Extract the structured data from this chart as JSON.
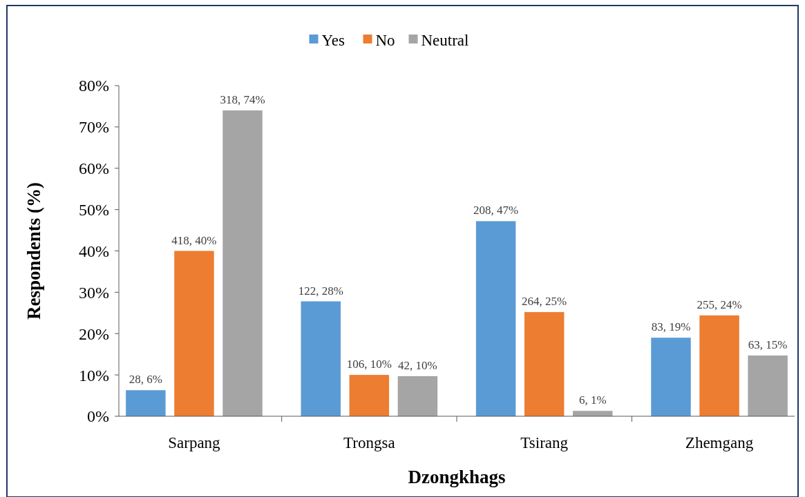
{
  "chart_data": {
    "type": "bar",
    "xlabel": "Dzongkhags",
    "ylabel": "Respondents (%)",
    "categories": [
      "Sarpang",
      "Trongsa",
      "Tsirang",
      "Zhemgang"
    ],
    "series": [
      {
        "name": "Yes",
        "color": "#5b9bd5",
        "values": [
          6.3,
          27.8,
          47.2,
          19
        ],
        "value_labels": [
          "28, 6%",
          "122, 28%",
          "208, 47%",
          "83, 19%"
        ]
      },
      {
        "name": "No",
        "color": "#ed7d31",
        "values": [
          40,
          10,
          25.2,
          24.4
        ],
        "value_labels": [
          "418, 40%",
          "106, 10%",
          "264, 25%",
          "255, 24%"
        ]
      },
      {
        "name": "Neutral",
        "color": "#a5a5a5",
        "values": [
          74,
          9.7,
          1.3,
          14.7
        ],
        "value_labels": [
          "318, 74%",
          "42, 10%",
          "6, 1%",
          "63, 15%"
        ]
      }
    ],
    "ylim": [
      0,
      80
    ],
    "yticks": [
      {
        "value": 0,
        "label": "0%"
      },
      {
        "value": 10,
        "label": "10%"
      },
      {
        "value": 20,
        "label": "20%"
      },
      {
        "value": 30,
        "label": "30%"
      },
      {
        "value": 40,
        "label": "40%"
      },
      {
        "value": 50,
        "label": "50%"
      },
      {
        "value": 60,
        "label": "60%"
      },
      {
        "value": 70,
        "label": "70%"
      },
      {
        "value": 80,
        "label": "80%"
      }
    ],
    "grid": false,
    "legend": "top"
  }
}
